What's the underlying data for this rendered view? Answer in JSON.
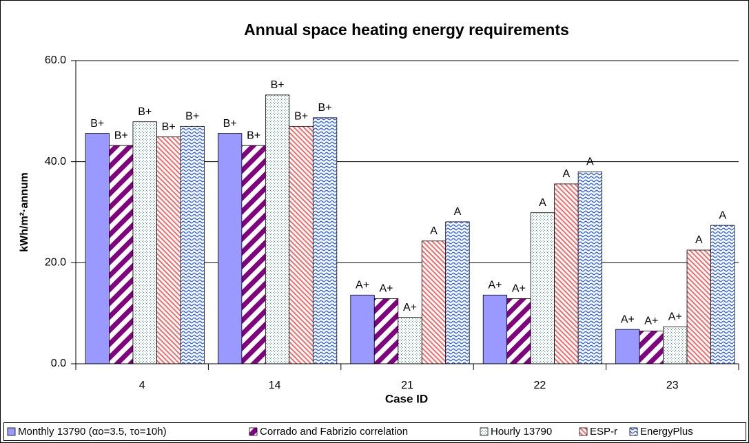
{
  "chart_data": {
    "type": "bar",
    "title": "Annual space heating energy requirements",
    "x_label": "Case ID",
    "y_label": "kWh/m²·annum",
    "categories": [
      "4",
      "14",
      "21",
      "22",
      "23"
    ],
    "ylim": [
      0,
      60
    ],
    "yticks": [
      {
        "value": 0,
        "label": "0.0"
      },
      {
        "value": 20,
        "label": "20.0"
      },
      {
        "value": 40,
        "label": "40.0"
      },
      {
        "value": 60,
        "label": "60.0"
      }
    ],
    "grid": true,
    "legend": "bottom",
    "series": [
      {
        "name": "Monthly 13790 (αo=3.5, τo=10h)",
        "color": "#9999ff",
        "pattern": "solid",
        "values": [
          45.6,
          45.6,
          13.6,
          13.6,
          6.8
        ],
        "rating_labels": [
          "B+",
          "B+",
          "A+",
          "A+",
          "A+"
        ]
      },
      {
        "name": "Corrado and Fabrizio correlation",
        "color": "#800080",
        "pattern": "wide-stripes",
        "values": [
          43.2,
          43.2,
          12.9,
          12.9,
          6.5
        ],
        "rating_labels": [
          "B+",
          "B+",
          "A+",
          "A+",
          "A+"
        ]
      },
      {
        "name": "Hourly 13790",
        "color": "#339966",
        "pattern": "dots",
        "values": [
          47.9,
          53.2,
          9.2,
          29.9,
          7.3
        ],
        "rating_labels": [
          "B+",
          "B+",
          "A+",
          "A",
          "A+"
        ]
      },
      {
        "name": "ESP-r",
        "color": "#ff6666",
        "pattern": "thin-stripes",
        "values": [
          44.9,
          47.0,
          24.3,
          35.6,
          22.5
        ],
        "rating_labels": [
          "B+",
          "B+",
          "A",
          "A",
          "A"
        ]
      },
      {
        "name": "EnergyPlus",
        "color": "#3366ff",
        "pattern": "waves",
        "values": [
          47.0,
          48.7,
          28.1,
          38.0,
          27.4
        ],
        "rating_labels": [
          "B+",
          "B+",
          "A",
          "A",
          "A"
        ]
      }
    ]
  }
}
